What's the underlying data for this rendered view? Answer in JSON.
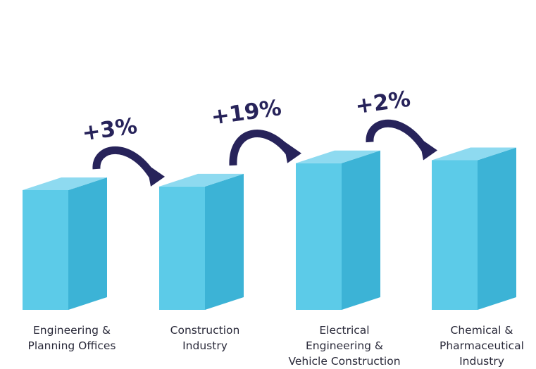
{
  "chart_data": {
    "type": "bar",
    "categories": [
      [
        "Engineering &",
        "Planning Offices"
      ],
      [
        "Construction",
        "Industry"
      ],
      [
        "Electrical",
        "Engineering &",
        "Vehicle Construction"
      ],
      [
        "Chemical &",
        "Pharmaceutical",
        "Industry"
      ]
    ],
    "values": [
      100,
      103,
      122.5,
      125
    ],
    "growth_labels": [
      "+3%",
      "+19%",
      "+2%"
    ],
    "ylim": [
      0,
      130
    ],
    "grid": false,
    "legend": "none",
    "axes_visible": false
  },
  "colors": {
    "bar_front": "#5ccbe8",
    "bar_side": "#3cb3d6",
    "bar_top": "#8edaf0",
    "arrow": "#27235a",
    "text": "#2a2a3a"
  }
}
